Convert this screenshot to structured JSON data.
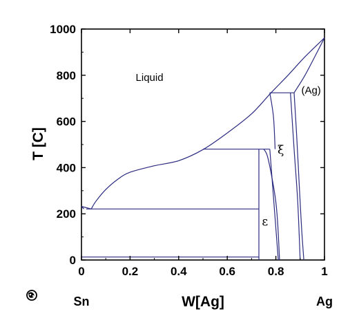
{
  "chart_data": {
    "type": "line",
    "title": "",
    "xlabel": "W[Ag]",
    "ylabel": "T [C]",
    "xlim": [
      0,
      1
    ],
    "ylim": [
      0,
      1000
    ],
    "x_ticks": [
      0,
      0.2,
      0.4,
      0.6,
      0.8,
      1
    ],
    "x_tick_labels": [
      "0",
      "0.2",
      "0.4",
      "0.6",
      "0.8",
      "1"
    ],
    "y_ticks": [
      0,
      200,
      400,
      600,
      800,
      1000
    ],
    "y_tick_labels": [
      "0",
      "200",
      "400",
      "600",
      "800",
      "1000"
    ],
    "end_labels": {
      "left": "Sn",
      "right": "Ag"
    },
    "regions": [
      {
        "label": "Liquid",
        "x": 0.28,
        "y": 775
      },
      {
        "label": "(Ag)",
        "x": 0.945,
        "y": 720
      },
      {
        "label": "ξ",
        "x": 0.82,
        "y": 460
      },
      {
        "label": "ε",
        "x": 0.755,
        "y": 150
      }
    ],
    "series": [
      {
        "points": [
          [
            0.04,
            221
          ],
          [
            0.06,
            255
          ],
          [
            0.1,
            305
          ],
          [
            0.15,
            350
          ],
          [
            0.2,
            380
          ],
          [
            0.3,
            408
          ],
          [
            0.4,
            430
          ],
          [
            0.5,
            478
          ],
          [
            0.6,
            550
          ],
          [
            0.7,
            633
          ],
          [
            0.78,
            724
          ],
          [
            0.85,
            800
          ],
          [
            0.92,
            880
          ],
          [
            1.0,
            962
          ]
        ]
      },
      {
        "points": [
          [
            0.0,
            232
          ],
          [
            0.04,
            221
          ]
        ]
      },
      {
        "points": [
          [
            0.0,
            232
          ],
          [
            0.01,
            221
          ]
        ]
      },
      {
        "points": [
          [
            0.02,
            221
          ],
          [
            0.73,
            221
          ]
        ]
      },
      {
        "points": [
          [
            0.0,
            13
          ],
          [
            0.73,
            13
          ]
        ]
      },
      {
        "points": [
          [
            0.5,
            480
          ],
          [
            0.775,
            480
          ]
        ]
      },
      {
        "points": [
          [
            0.775,
            724
          ],
          [
            0.875,
            724
          ]
        ]
      },
      {
        "points": [
          [
            0.73,
            480
          ],
          [
            0.73,
            0
          ]
        ]
      },
      {
        "points": [
          [
            0.775,
            480
          ],
          [
            0.81,
            0
          ]
        ]
      },
      {
        "points": [
          [
            0.75,
            480
          ],
          [
            0.765,
            450
          ],
          [
            0.785,
            350
          ],
          [
            0.8,
            250
          ],
          [
            0.808,
            150
          ],
          [
            0.815,
            0
          ]
        ]
      },
      {
        "points": [
          [
            0.775,
            724
          ],
          [
            0.79,
            620
          ],
          [
            0.797,
            480
          ]
        ]
      },
      {
        "points": [
          [
            0.86,
            724
          ],
          [
            0.875,
            480
          ],
          [
            0.89,
            250
          ],
          [
            0.9,
            0
          ]
        ]
      },
      {
        "points": [
          [
            0.875,
            724
          ],
          [
            0.885,
            550
          ],
          [
            0.895,
            350
          ],
          [
            0.905,
            150
          ],
          [
            0.915,
            0
          ]
        ]
      },
      {
        "points": [
          [
            0.875,
            724
          ],
          [
            0.92,
            800
          ],
          [
            0.96,
            880
          ],
          [
            1.0,
            962
          ]
        ]
      }
    ]
  },
  "logo_icon": "globe-icon"
}
